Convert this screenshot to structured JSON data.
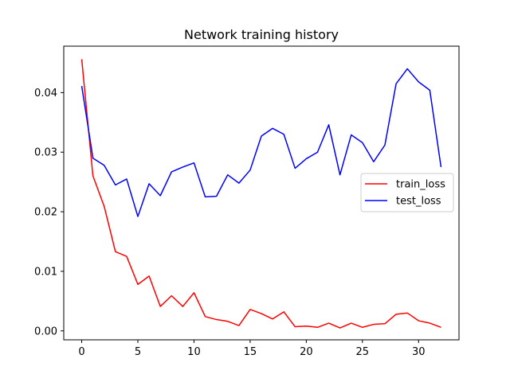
{
  "chart_data": {
    "type": "line",
    "title": "Network training history",
    "xlabel": "",
    "ylabel": "",
    "xlim": [
      -1.6,
      33.6
    ],
    "ylim": [
      -0.0015,
      0.0478
    ],
    "xticks": [
      0,
      5,
      10,
      15,
      20,
      25,
      30
    ],
    "xtick_labels": [
      "0",
      "5",
      "10",
      "15",
      "20",
      "25",
      "30"
    ],
    "yticks": [
      0.0,
      0.01,
      0.02,
      0.03,
      0.04
    ],
    "ytick_labels": [
      "0.00",
      "0.01",
      "0.02",
      "0.03",
      "0.04"
    ],
    "grid": false,
    "legend_position": "center-right",
    "x": [
      0,
      1,
      2,
      3,
      4,
      5,
      6,
      7,
      8,
      9,
      10,
      11,
      12,
      13,
      14,
      15,
      16,
      17,
      18,
      19,
      20,
      21,
      22,
      23,
      24,
      25,
      26,
      27,
      28,
      29,
      30,
      31,
      32
    ],
    "series": [
      {
        "name": "train_loss",
        "color": "#ff0000",
        "values": [
          0.0456,
          0.026,
          0.0209,
          0.0133,
          0.0125,
          0.0078,
          0.0092,
          0.0041,
          0.0059,
          0.0041,
          0.0064,
          0.0024,
          0.0019,
          0.0016,
          0.0009,
          0.0036,
          0.0029,
          0.002,
          0.0032,
          0.0007,
          0.0008,
          0.0006,
          0.0013,
          0.0005,
          0.0013,
          0.0006,
          0.0011,
          0.0012,
          0.0028,
          0.003,
          0.0017,
          0.0013,
          0.0006
        ]
      },
      {
        "name": "test_loss",
        "color": "#0000ff",
        "values": [
          0.0411,
          0.029,
          0.0278,
          0.0245,
          0.0255,
          0.0192,
          0.0247,
          0.0227,
          0.0267,
          0.0275,
          0.0282,
          0.0225,
          0.0226,
          0.0262,
          0.0248,
          0.027,
          0.0327,
          0.034,
          0.033,
          0.0273,
          0.0289,
          0.03,
          0.0346,
          0.0262,
          0.0329,
          0.0316,
          0.0284,
          0.0312,
          0.0415,
          0.044,
          0.0418,
          0.0404,
          0.0275
        ]
      }
    ]
  }
}
